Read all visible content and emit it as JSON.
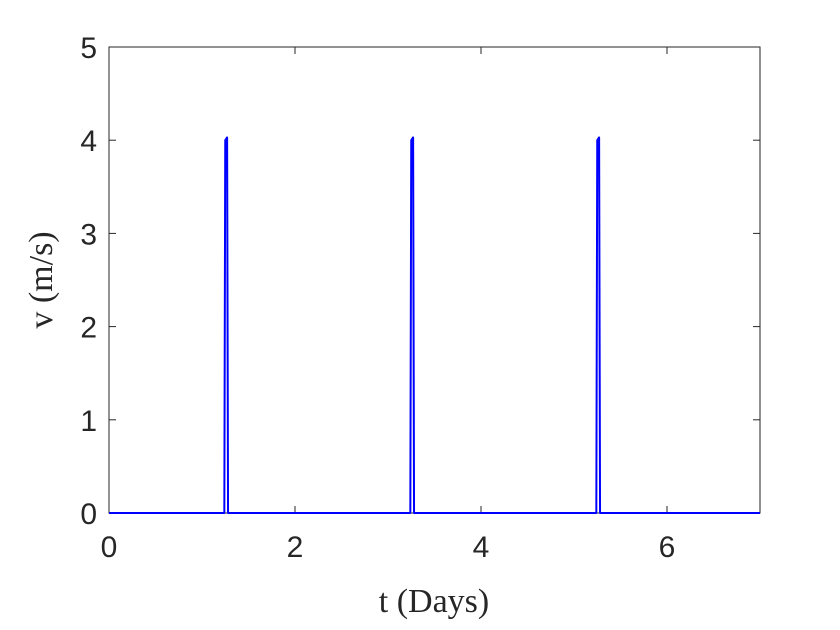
{
  "chart_data": {
    "type": "line",
    "xlabel": "t (Days)",
    "ylabel": "v (m/s)",
    "x": [
      0,
      1.24,
      1.25,
      1.27,
      1.28,
      3.24,
      3.25,
      3.27,
      3.28,
      5.24,
      5.25,
      5.27,
      5.28,
      7
    ],
    "values": [
      0,
      0,
      4,
      4.03,
      0,
      0,
      4,
      4.03,
      0,
      0,
      4,
      4.03,
      0,
      0
    ],
    "color": "#0000ff",
    "xlim": [
      0,
      7
    ],
    "xticks": [
      0,
      2,
      4,
      6
    ],
    "ylim": [
      0,
      5
    ],
    "yticks": [
      0,
      1,
      2,
      3,
      4,
      5
    ],
    "grid": false
  }
}
